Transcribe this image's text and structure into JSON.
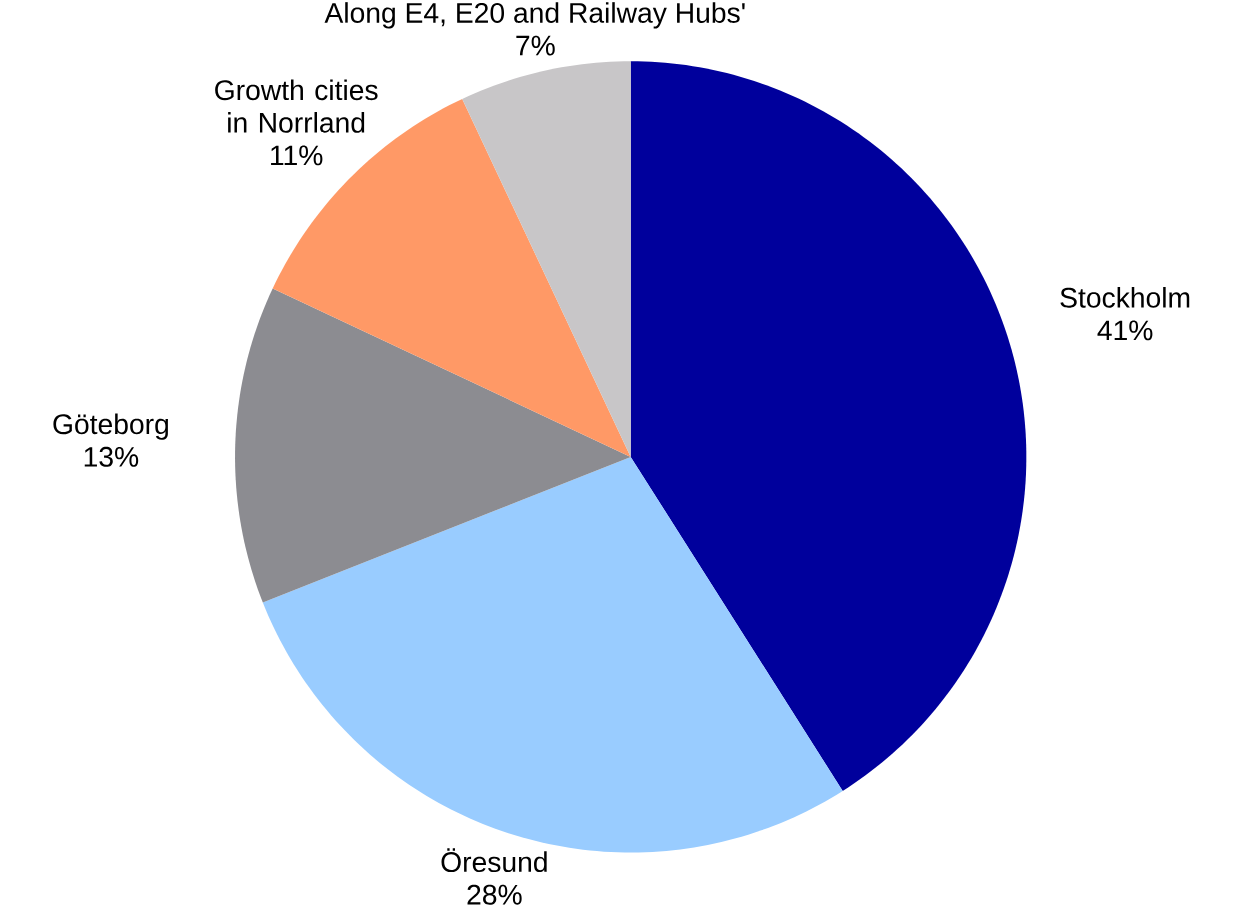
{
  "chart_data": {
    "type": "pie",
    "categories": [
      "Stockholm",
      "Öresund",
      "Göteborg",
      "Growth cities in Norrland",
      "Along E4, E20 and Railway Hubs'"
    ],
    "values": [
      41,
      28,
      13,
      11,
      7
    ],
    "colors": [
      "#00009c",
      "#99ccff",
      "#8c8c91",
      "#ff9966",
      "#c8c6c8"
    ],
    "value_labels": [
      "41%",
      "28%",
      "13%",
      "11%",
      "7%"
    ]
  }
}
